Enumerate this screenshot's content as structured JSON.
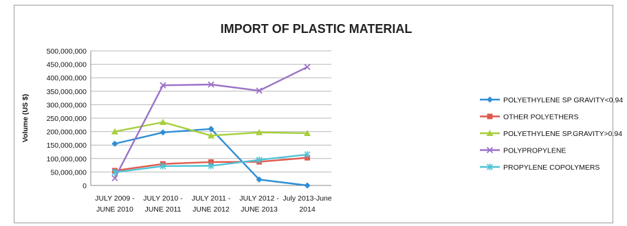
{
  "chart_data": {
    "type": "line",
    "title": "IMPORT OF PLASTIC MATERIAL",
    "xlabel": "",
    "ylabel": "Volume (US $)",
    "ylim": [
      0,
      500000000
    ],
    "yticks": [
      "0",
      "50,000,000",
      "100,000,000",
      "150,000,000",
      "200,000,000",
      "250,000,000",
      "300,000,000",
      "350,000,000",
      "400,000,000",
      "450,000,000",
      "500,000,000"
    ],
    "categories": [
      [
        "JULY 2009 -",
        "JUNE 2010"
      ],
      [
        "JULY 2010 -",
        "JUNE 2011"
      ],
      [
        "JULY 2011 -",
        "JUNE 2012"
      ],
      [
        "JULY 2012 -",
        "JUNE 2013"
      ],
      [
        "July 2013-June",
        "2014"
      ]
    ],
    "grid": true,
    "legend_position": "right",
    "series": [
      {
        "name": "POLYETHYLENE SP GRAVITY<0.94",
        "color": "#2e8ed6",
        "marker": "diamond",
        "values": [
          155000000,
          197000000,
          210000000,
          22000000,
          0
        ]
      },
      {
        "name": "OTHER POLYETHERS",
        "color": "#e05a4e",
        "marker": "square",
        "values": [
          55000000,
          80000000,
          87000000,
          88000000,
          103000000
        ]
      },
      {
        "name": "POLYETHYLENE SP.GRAVITY>0.94",
        "color": "#a6cf3a",
        "marker": "triangle",
        "values": [
          200000000,
          235000000,
          185000000,
          197000000,
          194000000
        ]
      },
      {
        "name": "POLYPROPYLENE",
        "color": "#9b72c8",
        "marker": "x",
        "values": [
          27000000,
          372000000,
          375000000,
          352000000,
          440000000
        ]
      },
      {
        "name": "PROPYLENE COPOLYMERS",
        "color": "#4ec3d6",
        "marker": "asterisk",
        "values": [
          49000000,
          72000000,
          73000000,
          95000000,
          115000000
        ]
      }
    ]
  }
}
